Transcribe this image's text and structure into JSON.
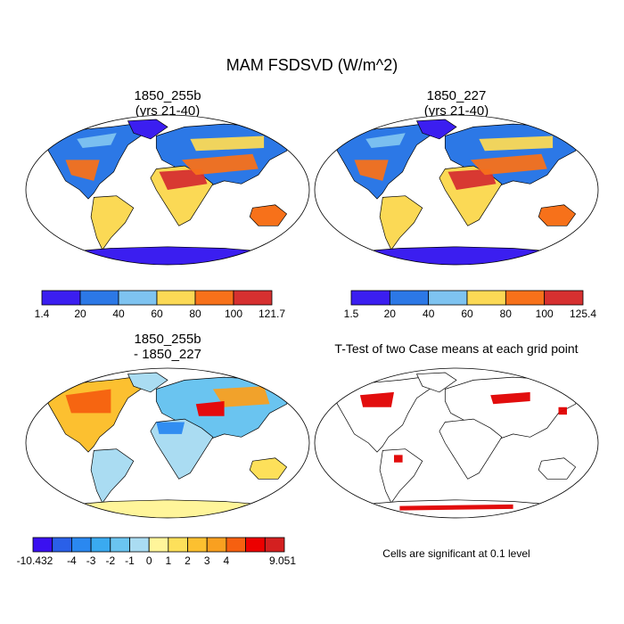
{
  "title": "MAM FSDSVD (W/m^2)",
  "panels": [
    {
      "title_line1": "1850_255b",
      "title_line2": "(yrs 21-40)"
    },
    {
      "title_line1": "1850_227",
      "title_line2": "(yrs 21-40)"
    },
    {
      "title_line1": "1850_255b",
      "title_line2": "- 1850_227"
    },
    {
      "title_line1": "T-Test of two Case means at each grid point"
    }
  ],
  "colorbars": [
    {
      "colors": [
        "#3b1ef0",
        "#2c78e6",
        "#7ec3f0",
        "#fbd955",
        "#f7711a",
        "#d63030"
      ],
      "labels": [
        "1.4",
        "20",
        "40",
        "60",
        "80",
        "100",
        "121.7"
      ]
    },
    {
      "colors": [
        "#3b1ef0",
        "#2c78e6",
        "#7ec3f0",
        "#fbd955",
        "#f7711a",
        "#d63030"
      ],
      "labels": [
        "1.5",
        "20",
        "40",
        "60",
        "80",
        "100",
        "125.4"
      ]
    },
    {
      "colors": [
        "#3a10f0",
        "#2a60e8",
        "#2a88f0",
        "#3aaaf0",
        "#6ac4f0",
        "#aadcf2",
        "#fff59a",
        "#fde05a",
        "#fcc030",
        "#f9a020",
        "#f66010",
        "#ec0000",
        "#d42020"
      ],
      "labels": [
        "-10.432",
        "-4",
        "-3",
        "-2",
        "-1",
        "0",
        "1",
        "2",
        "3",
        "4",
        "9.051"
      ]
    }
  ],
  "note": "Cells are significant at 0.1 level",
  "colors": {
    "significant": "#e00000",
    "land_outline": "#000000"
  }
}
